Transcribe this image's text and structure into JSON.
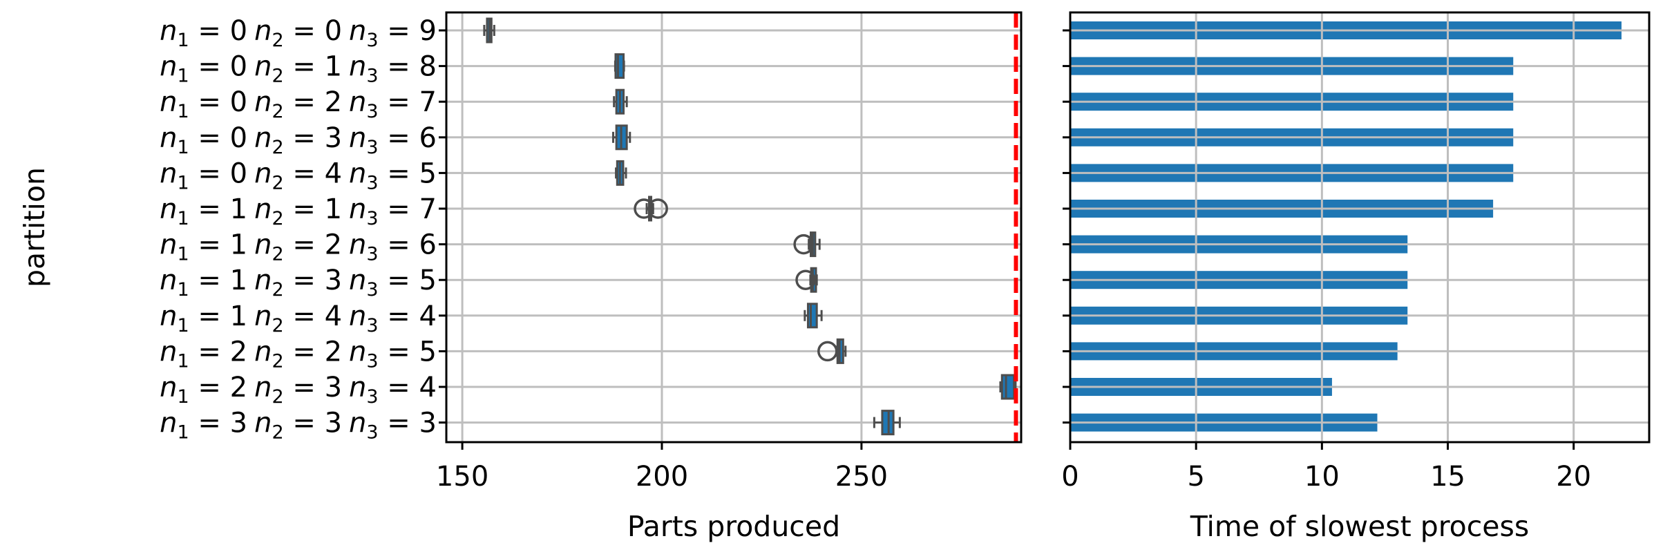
{
  "chart_data": [
    {
      "type": "box",
      "ylabel": "partition",
      "xlabel": "Parts produced",
      "xlim": [
        146,
        290
      ],
      "xticks": [
        150,
        200,
        250
      ],
      "grid": true,
      "categories": [
        {
          "n1": "0",
          "n2": "0",
          "n3": "9"
        },
        {
          "n1": "0",
          "n2": "1",
          "n3": "8"
        },
        {
          "n1": "0",
          "n2": "2",
          "n3": "7"
        },
        {
          "n1": "0",
          "n2": "3",
          "n3": "6"
        },
        {
          "n1": "0",
          "n2": "4",
          "n3": "5"
        },
        {
          "n1": "1",
          "n2": "1",
          "n3": "7"
        },
        {
          "n1": "1",
          "n2": "2",
          "n3": "6"
        },
        {
          "n1": "1",
          "n2": "3",
          "n3": "5"
        },
        {
          "n1": "1",
          "n2": "4",
          "n3": "4"
        },
        {
          "n1": "2",
          "n2": "2",
          "n3": "5"
        },
        {
          "n1": "2",
          "n2": "3",
          "n3": "4"
        },
        {
          "n1": "3",
          "n2": "3",
          "n3": "3"
        }
      ],
      "boxes": [
        {
          "whislo": 155.5,
          "q1": 156.2,
          "med": 156.8,
          "q3": 157.3,
          "whishi": 158.0,
          "fliers": []
        },
        {
          "whislo": 188.3,
          "q1": 188.4,
          "med": 189.0,
          "q3": 190.4,
          "whishi": 190.5,
          "fliers": []
        },
        {
          "whislo": 188.0,
          "q1": 188.6,
          "med": 189.5,
          "q3": 190.4,
          "whishi": 191.2,
          "fliers": []
        },
        {
          "whislo": 187.8,
          "q1": 188.6,
          "med": 189.8,
          "q3": 191.2,
          "whishi": 192.0,
          "fliers": []
        },
        {
          "whislo": 188.5,
          "q1": 188.8,
          "med": 189.5,
          "q3": 190.3,
          "whishi": 191.0,
          "fliers": []
        },
        {
          "whislo": 196.2,
          "q1": 196.8,
          "med": 197.0,
          "q3": 197.3,
          "whishi": 197.8,
          "fliers": [
            195.5,
            199.0
          ]
        },
        {
          "whislo": 236.8,
          "q1": 237.3,
          "med": 237.8,
          "q3": 238.4,
          "whishi": 239.5,
          "fliers": [
            235.5
          ]
        },
        {
          "whislo": 237.2,
          "q1": 237.4,
          "med": 237.8,
          "q3": 238.6,
          "whishi": 238.8,
          "fliers": [
            236.0
          ]
        },
        {
          "whislo": 235.8,
          "q1": 236.6,
          "med": 237.3,
          "q3": 238.8,
          "whishi": 240.0,
          "fliers": []
        },
        {
          "whislo": 243.8,
          "q1": 244.0,
          "med": 244.5,
          "q3": 245.4,
          "whishi": 246.0,
          "fliers": [
            241.5
          ]
        },
        {
          "whislo": 284.8,
          "q1": 285.2,
          "med": 286.2,
          "q3": 288.2,
          "whishi": 288.6,
          "fliers": []
        },
        {
          "whislo": 253.2,
          "q1": 255.2,
          "med": 256.8,
          "q3": 258.0,
          "whishi": 259.6,
          "fliers": []
        }
      ],
      "reference_line": {
        "x": 288.7,
        "color": "#ff0000",
        "style": "dashed"
      },
      "colors": {
        "box_face": "#1f77b4",
        "box_edge": "#4d4d4d",
        "grid": "#bebebe"
      }
    },
    {
      "type": "bar",
      "orientation": "horizontal",
      "xlabel": "Time of slowest process",
      "xlim": [
        0,
        23.0
      ],
      "xticks": [
        0,
        5,
        10,
        15,
        20
      ],
      "grid": true,
      "values": [
        21.9,
        17.6,
        17.6,
        17.6,
        17.6,
        16.8,
        13.4,
        13.4,
        13.4,
        13.0,
        10.4,
        12.2
      ],
      "colors": {
        "bar": "#1f77b4",
        "grid": "#bebebe"
      }
    }
  ]
}
